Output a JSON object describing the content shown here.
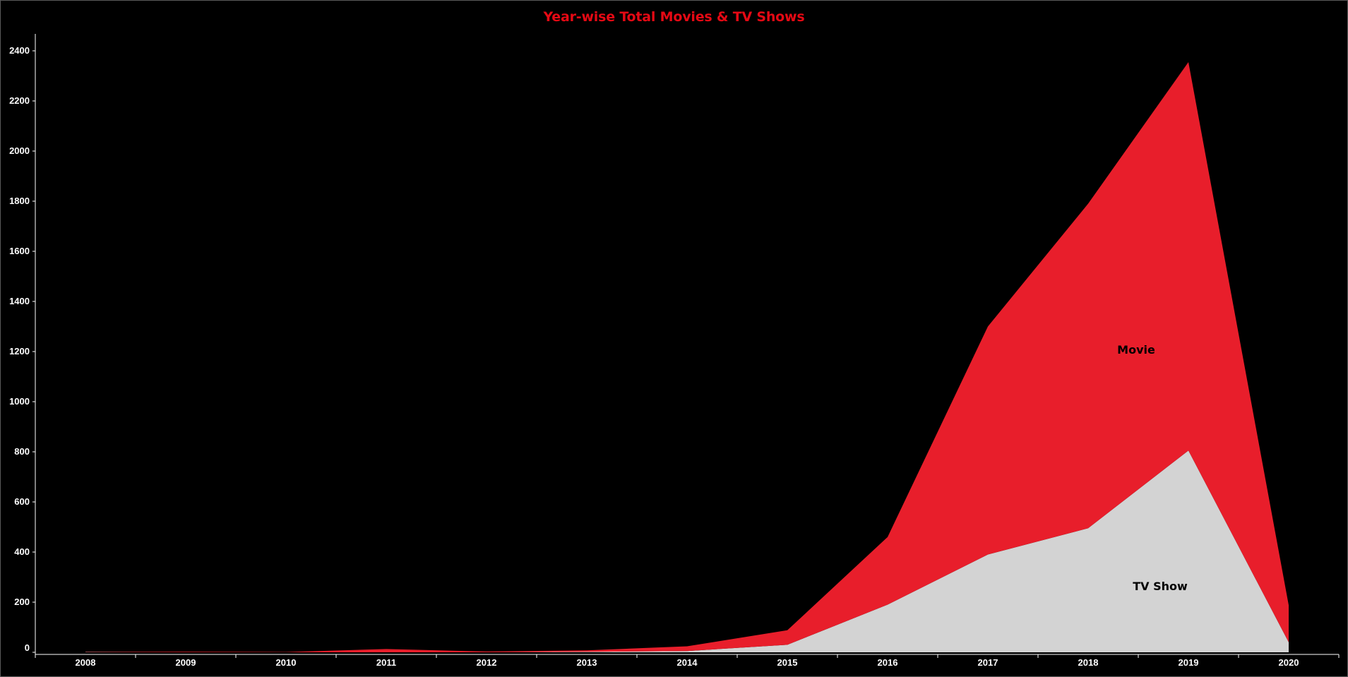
{
  "chart_data": {
    "type": "area",
    "stacked": true,
    "title": "Year-wise Total Movies & TV Shows",
    "xlabel": "",
    "ylabel": "",
    "x": [
      "2008",
      "2009",
      "2010",
      "2011",
      "2012",
      "2013",
      "2014",
      "2015",
      "2016",
      "2017",
      "2018",
      "2019",
      "2020"
    ],
    "ylim": [
      0,
      2400
    ],
    "yticks": [
      0,
      200,
      400,
      600,
      800,
      1000,
      1200,
      1400,
      1600,
      1800,
      2000,
      2200,
      2400
    ],
    "grid": false,
    "series": [
      {
        "name": "TV Show",
        "color": "#d3d3d3",
        "values": [
          1,
          0,
          0,
          0,
          0,
          2,
          5,
          30,
          190,
          390,
          495,
          805,
          40
        ],
        "label": "TV Show"
      },
      {
        "name": "Movie",
        "color": "#e81e2b",
        "values": [
          1,
          2,
          1,
          13,
          3,
          6,
          19,
          58,
          270,
          910,
          1295,
          1550,
          148
        ],
        "label": "Movie"
      }
    ]
  },
  "colors": {
    "background": "#000000",
    "title": "#e50914",
    "axis": "#ffffff"
  }
}
